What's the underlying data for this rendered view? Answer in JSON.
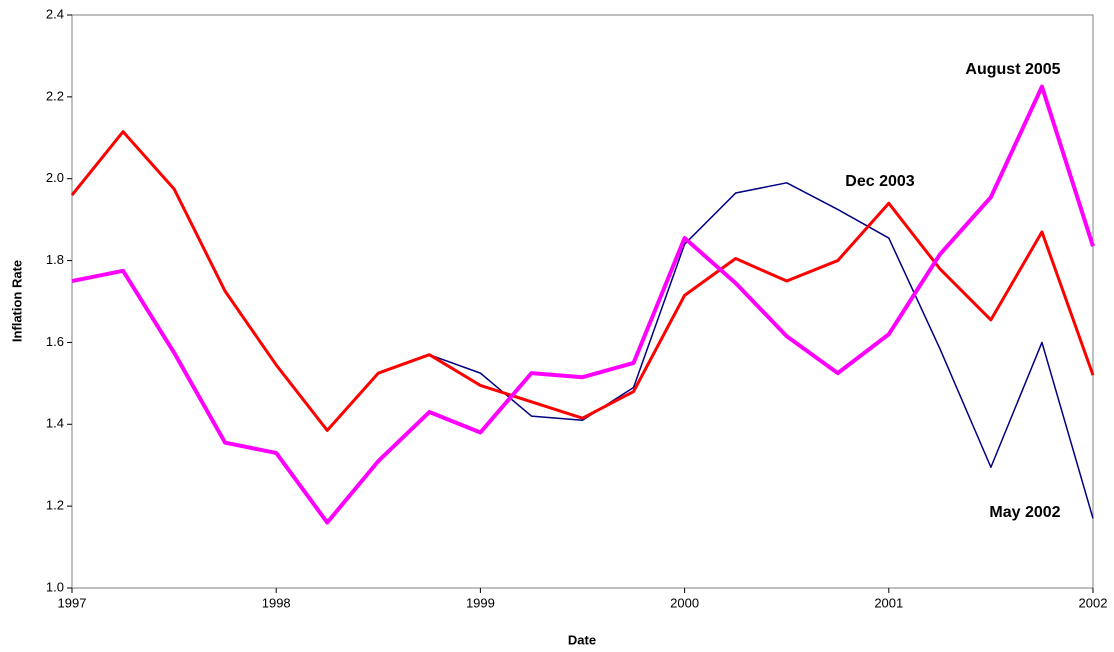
{
  "chart_data": {
    "type": "line",
    "x_label": "Date",
    "y_label": "Inflation Rate",
    "x": [
      1997,
      1997.25,
      1997.5,
      1997.75,
      1998,
      1998.25,
      1998.5,
      1998.75,
      1999,
      1999.25,
      1999.5,
      1999.75,
      2000,
      2000.25,
      2000.5,
      2000.75,
      2001,
      2001.25,
      2001.5,
      2001.75,
      2002
    ],
    "series": [
      {
        "name": "May 2002",
        "color": "#000080",
        "values": [
          1.96,
          2.115,
          1.975,
          1.725,
          1.545,
          1.385,
          1.525,
          1.57,
          1.525,
          1.42,
          1.41,
          1.49,
          1.84,
          1.965,
          1.99,
          1.925,
          1.855,
          1.585,
          1.295,
          1.6,
          1.17
        ]
      },
      {
        "name": "Dec 2003",
        "color": "#ff0000",
        "values": [
          1.96,
          2.115,
          1.975,
          1.725,
          1.545,
          1.385,
          1.525,
          1.57,
          1.495,
          1.455,
          1.415,
          1.48,
          1.715,
          1.805,
          1.75,
          1.8,
          1.94,
          1.78,
          1.655,
          1.87,
          1.52
        ]
      },
      {
        "name": "August 2005",
        "color": "#ff00ff",
        "values": [
          1.75,
          1.775,
          1.575,
          1.355,
          1.33,
          1.16,
          1.31,
          1.43,
          1.38,
          1.525,
          1.515,
          1.55,
          1.855,
          1.745,
          1.615,
          1.525,
          1.62,
          1.815,
          1.955,
          2.225,
          1.835
        ]
      }
    ],
    "xlim": [
      1997,
      2002
    ],
    "xticks": [
      1997,
      1998,
      1999,
      2000,
      2001,
      2002
    ],
    "ylim": [
      1.0,
      2.4
    ],
    "yticks": [
      {
        "value": 1.0,
        "label": "1.0"
      },
      1.2,
      1.4,
      1.6,
      1.8,
      {
        "value": 2.0,
        "label": "2.0"
      },
      2.2,
      2.4
    ]
  }
}
